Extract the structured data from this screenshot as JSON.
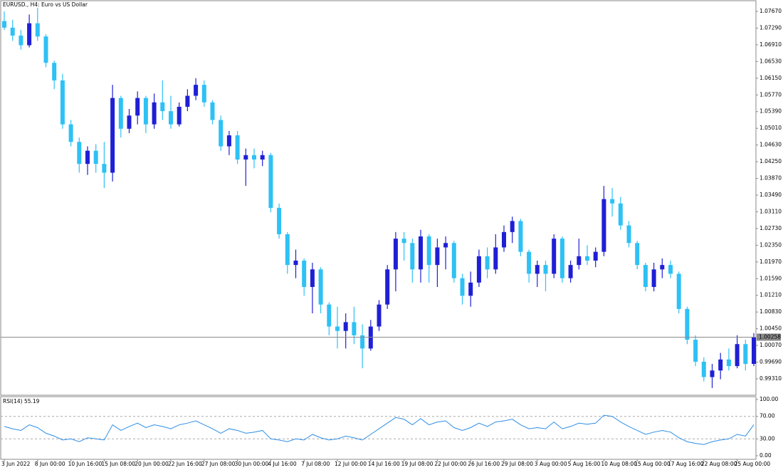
{
  "chart_data": {
    "type": "candlestick",
    "title": "EURUSD., H4:  Euro vs US Dollar",
    "up_color": "#1f1fd6",
    "down_color": "#2ec1f5",
    "categories": [
      "3 Jun 2022",
      null,
      null,
      null,
      "8 Jun 00:00",
      null,
      null,
      null,
      "10 Jun 16:00",
      null,
      null,
      null,
      "15 Jun 08:00",
      null,
      null,
      null,
      "20 Jun 00:00",
      null,
      null,
      null,
      "22 Jun 16:00",
      null,
      null,
      null,
      "27 Jun 08:00",
      null,
      null,
      null,
      "30 Jun 00:00",
      null,
      null,
      null,
      "4 Jul 16:00",
      null,
      null,
      null,
      "7 Jul 08:00",
      null,
      null,
      null,
      "12 Jul 00:00",
      null,
      null,
      null,
      "14 Jul 16:00",
      null,
      null,
      null,
      "19 Jul 08:00",
      null,
      null,
      null,
      "22 Jul 00:00",
      null,
      null,
      null,
      "26 Jul 16:00",
      null,
      null,
      null,
      "29 Jul 08:00",
      null,
      null,
      null,
      "3 Aug 00:00",
      null,
      null,
      null,
      "5 Aug 16:00",
      null,
      null,
      null,
      "10 Aug 08:00",
      null,
      null,
      null,
      "15 Aug 00:00",
      null,
      null,
      null,
      "17 Aug 16:00",
      null,
      null,
      null,
      "22 Aug 08:00",
      null,
      null,
      null,
      "25 Aug 00:00",
      null,
      null
    ],
    "candles": [
      [
        1.0745,
        1.0767,
        1.0725,
        1.073
      ],
      [
        1.073,
        1.0748,
        1.07,
        1.0712
      ],
      [
        1.0712,
        1.0725,
        1.068,
        1.069
      ],
      [
        1.069,
        1.076,
        1.0685,
        1.074
      ],
      [
        1.074,
        1.0775,
        1.07,
        1.071
      ],
      [
        1.071,
        1.0715,
        1.064,
        1.065
      ],
      [
        1.065,
        1.0655,
        1.059,
        1.061
      ],
      [
        1.061,
        1.0625,
        1.05,
        1.051
      ],
      [
        1.051,
        1.052,
        1.046,
        1.047
      ],
      [
        1.047,
        1.048,
        1.04,
        1.042
      ],
      [
        1.042,
        1.046,
        1.0395,
        1.045
      ],
      [
        1.045,
        1.0465,
        1.04,
        1.042
      ],
      [
        1.042,
        1.047,
        1.0365,
        1.04
      ],
      [
        1.04,
        1.06,
        1.038,
        1.057
      ],
      [
        1.057,
        1.0575,
        1.048,
        1.05
      ],
      [
        1.05,
        1.0545,
        1.049,
        1.053
      ],
      [
        1.053,
        1.0585,
        1.051,
        1.057
      ],
      [
        1.057,
        1.0575,
        1.049,
        1.051
      ],
      [
        1.051,
        1.058,
        1.05,
        1.056
      ],
      [
        1.056,
        1.061,
        1.052,
        1.054
      ],
      [
        1.054,
        1.0575,
        1.05,
        1.051
      ],
      [
        1.051,
        1.056,
        1.0505,
        1.055
      ],
      [
        1.055,
        1.059,
        1.054,
        1.0575
      ],
      [
        1.0575,
        1.0615,
        1.0565,
        1.06
      ],
      [
        1.06,
        1.061,
        1.055,
        1.056
      ],
      [
        1.056,
        1.0565,
        1.051,
        1.052
      ],
      [
        1.052,
        1.053,
        1.045,
        1.046
      ],
      [
        1.046,
        1.0495,
        1.044,
        1.0485
      ],
      [
        1.0485,
        1.0495,
        1.042,
        1.043
      ],
      [
        1.043,
        1.0455,
        1.037,
        1.044
      ],
      [
        1.044,
        1.0455,
        1.041,
        1.043
      ],
      [
        1.043,
        1.045,
        1.0415,
        1.044
      ],
      [
        1.044,
        1.0445,
        1.031,
        1.032
      ],
      [
        1.032,
        1.033,
        1.025,
        1.026
      ],
      [
        1.026,
        1.0265,
        1.017,
        1.019
      ],
      [
        1.019,
        1.0225,
        1.016,
        1.02
      ],
      [
        1.02,
        1.0205,
        1.012,
        1.014
      ],
      [
        1.014,
        1.0195,
        1.008,
        1.018
      ],
      [
        1.018,
        1.0185,
        1.008,
        1.01
      ],
      [
        1.01,
        1.0105,
        1.003,
        1.005
      ],
      [
        1.005,
        1.0095,
        1.0,
        1.004
      ],
      [
        1.004,
        1.008,
        1.0,
        1.006
      ],
      [
        1.006,
        1.0095,
        1.001,
        1.003
      ],
      [
        1.003,
        1.0055,
        0.9955,
        1.0
      ],
      [
        1.0,
        1.0065,
        0.9995,
        1.005
      ],
      [
        1.005,
        1.011,
        1.004,
        1.01
      ],
      [
        1.01,
        1.019,
        1.009,
        1.018
      ],
      [
        1.018,
        1.0265,
        1.013,
        1.025
      ],
      [
        1.025,
        1.0265,
        1.02,
        1.024
      ],
      [
        1.024,
        1.025,
        1.015,
        1.018
      ],
      [
        1.018,
        1.027,
        1.015,
        1.0255
      ],
      [
        1.0255,
        1.026,
        1.015,
        1.019
      ],
      [
        1.019,
        1.025,
        1.014,
        1.023
      ],
      [
        1.023,
        1.0255,
        1.018,
        1.024
      ],
      [
        1.024,
        1.0245,
        1.015,
        1.016
      ],
      [
        1.016,
        1.017,
        1.01,
        1.012
      ],
      [
        1.012,
        1.0175,
        1.0095,
        1.015
      ],
      [
        1.015,
        1.0225,
        1.014,
        1.021
      ],
      [
        1.021,
        1.023,
        1.016,
        1.018
      ],
      [
        1.018,
        1.026,
        1.017,
        1.023
      ],
      [
        1.023,
        1.028,
        1.022,
        1.0265
      ],
      [
        1.0265,
        1.03,
        1.024,
        1.029
      ],
      [
        1.029,
        1.0295,
        1.021,
        1.022
      ],
      [
        1.022,
        1.0225,
        1.015,
        1.017
      ],
      [
        1.017,
        1.02,
        1.014,
        1.019
      ],
      [
        1.019,
        1.02,
        1.013,
        1.017
      ],
      [
        1.017,
        1.026,
        1.016,
        1.025
      ],
      [
        1.025,
        1.0255,
        1.015,
        1.016
      ],
      [
        1.016,
        1.02,
        1.015,
        1.019
      ],
      [
        1.019,
        1.025,
        1.018,
        1.021
      ],
      [
        1.021,
        1.0235,
        1.019,
        1.02
      ],
      [
        1.02,
        1.023,
        1.0185,
        1.022
      ],
      [
        1.022,
        1.037,
        1.021,
        1.034
      ],
      [
        1.034,
        1.0365,
        1.03,
        1.033
      ],
      [
        1.033,
        1.0345,
        1.027,
        1.028
      ],
      [
        1.028,
        1.029,
        1.023,
        1.024
      ],
      [
        1.024,
        1.0245,
        1.018,
        1.019
      ],
      [
        1.019,
        1.0195,
        1.013,
        1.014
      ],
      [
        1.014,
        1.0195,
        1.013,
        1.018
      ],
      [
        1.018,
        1.0205,
        1.016,
        1.019
      ],
      [
        1.019,
        1.02,
        1.016,
        1.017
      ],
      [
        1.017,
        1.0175,
        1.008,
        1.009
      ],
      [
        1.009,
        1.0095,
        1.001,
        1.002
      ],
      [
        1.002,
        1.003,
        0.996,
        0.997
      ],
      [
        0.997,
        0.998,
        0.9925,
        0.9935
      ],
      [
        0.9935,
        0.9965,
        0.991,
        0.995
      ],
      [
        0.995,
        0.999,
        0.993,
        0.9975
      ],
      [
        0.9975,
        1.0,
        0.995,
        0.996
      ],
      [
        0.996,
        1.003,
        0.9955,
        1.001
      ],
      [
        1.001,
        1.002,
        0.995,
        0.9965
      ],
      [
        0.9965,
        1.0035,
        0.996,
        1.00258
      ]
    ],
    "ylim": [
      0.98937,
      1.07897
    ],
    "yticks": [
      {
        "value": 1.0767,
        "label": "1.07670"
      },
      {
        "value": 1.0729,
        "label": "1.07290"
      },
      {
        "value": 1.0691,
        "label": "1.06910"
      },
      {
        "value": 1.0653,
        "label": "1.06530"
      },
      {
        "value": 1.0615,
        "label": "1.06150"
      },
      {
        "value": 1.0577,
        "label": "1.05770"
      },
      {
        "value": 1.0539,
        "label": "1.05390"
      },
      {
        "value": 1.0501,
        "label": "1.05010"
      },
      {
        "value": 1.0463,
        "label": "1.04630"
      },
      {
        "value": 1.0425,
        "label": "1.04250"
      },
      {
        "value": 1.0387,
        "label": "1.03870"
      },
      {
        "value": 1.0349,
        "label": "1.03490"
      },
      {
        "value": 1.0311,
        "label": "1.03110"
      },
      {
        "value": 1.0273,
        "label": "1.02730"
      },
      {
        "value": 1.0235,
        "label": "1.02350"
      },
      {
        "value": 1.0197,
        "label": "1.01970"
      },
      {
        "value": 1.0159,
        "label": "1.01590"
      },
      {
        "value": 1.0121,
        "label": "1.01210"
      },
      {
        "value": 1.0083,
        "label": "1.00830"
      },
      {
        "value": 1.0045,
        "label": "1.00450"
      },
      {
        "value": 1.0007,
        "label": "1.00070"
      },
      {
        "value": 0.9969,
        "label": "0.99690"
      },
      {
        "value": 0.9931,
        "label": "0.99310"
      }
    ],
    "current_price": 1.00258,
    "rsi": {
      "name": "RSI(14)",
      "color": "#2e8ee6",
      "values": [
        52,
        48,
        45,
        55,
        50,
        40,
        35,
        28,
        30,
        25,
        32,
        30,
        28,
        55,
        45,
        52,
        58,
        50,
        55,
        52,
        48,
        55,
        58,
        62,
        55,
        48,
        40,
        48,
        45,
        40,
        42,
        45,
        30,
        28,
        25,
        30,
        28,
        38,
        32,
        28,
        30,
        35,
        32,
        28,
        38,
        48,
        58,
        68,
        65,
        55,
        66,
        55,
        60,
        62,
        50,
        45,
        50,
        58,
        52,
        60,
        62,
        65,
        55,
        48,
        50,
        48,
        60,
        48,
        52,
        58,
        56,
        58,
        72,
        70,
        60,
        52,
        45,
        38,
        42,
        45,
        42,
        32,
        25,
        22,
        20,
        25,
        28,
        30,
        38,
        35,
        55.19
      ],
      "ylim": [
        0,
        100
      ],
      "yticks": [
        {
          "value": 100,
          "label": "100.00"
        },
        {
          "value": 70,
          "label": "70.00"
        },
        {
          "value": 30,
          "label": "30.00"
        },
        {
          "value": 0,
          "label": "0.00"
        }
      ],
      "levels": [
        70,
        30
      ]
    }
  }
}
